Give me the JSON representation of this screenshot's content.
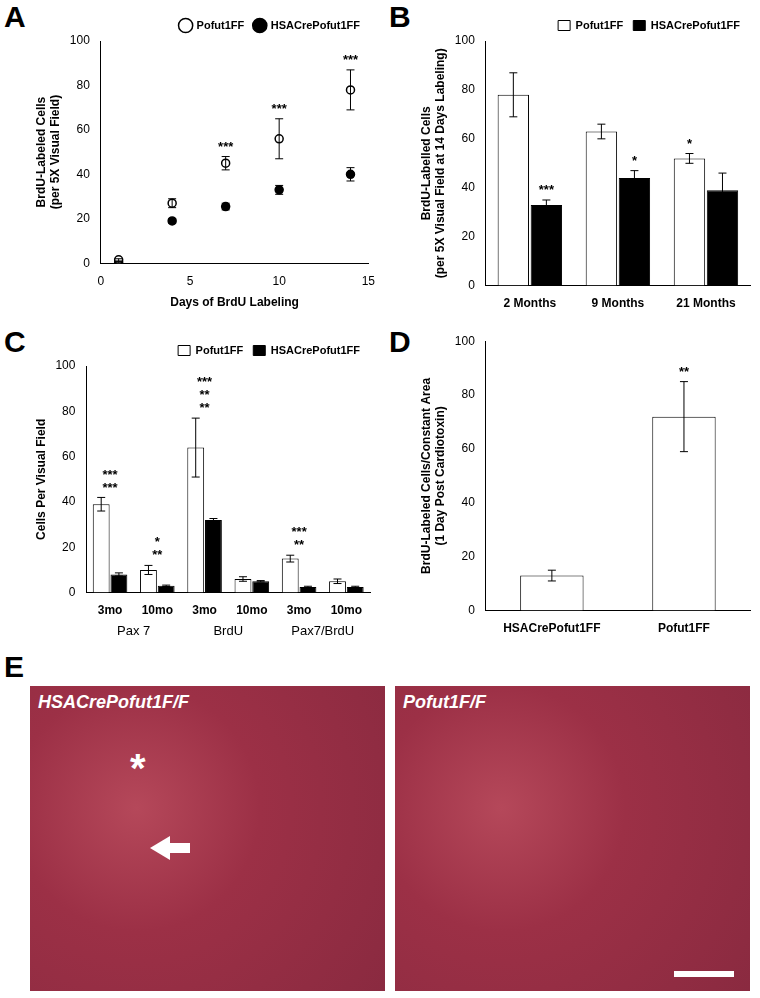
{
  "chart_data": [
    {
      "type": "scatter",
      "title": "A",
      "x_label": "Days of BrdU Labeling",
      "y_label": "BrdU-Labeled Cells\n(per 5X Visual Field)",
      "x": [
        1,
        4,
        7,
        10,
        14
      ],
      "series": [
        {
          "name": "Pofut1FF",
          "color": "#000000",
          "marker": "open_circle",
          "values": [
            1.5,
            27,
            45,
            56,
            78
          ],
          "errors": [
            0.5,
            2,
            3,
            9,
            9
          ]
        },
        {
          "name": "HSACrePofut1FF",
          "color": "#000000",
          "marker": "filled_circle",
          "values": [
            0.5,
            19,
            25.5,
            33,
            40
          ],
          "errors": [
            0.3,
            1,
            1.5,
            2,
            3
          ]
        }
      ],
      "xlim": [
        0,
        15
      ],
      "xticks": [
        0,
        5,
        10,
        15
      ],
      "ylim": [
        0,
        100
      ],
      "yticks": [
        0,
        20,
        40,
        60,
        80,
        100
      ],
      "grid": false,
      "legend": "top-right",
      "annotations": [
        {
          "x": 7,
          "text": "***"
        },
        {
          "x": 10,
          "text": "***"
        },
        {
          "x": 14,
          "text": "***"
        }
      ]
    },
    {
      "type": "bar",
      "title": "B",
      "y_label": "BrdU-Labelled Cells\n(per 5X Visual Field at 14 Days Labeling)",
      "categories": [
        "2 Months",
        "9 Months",
        "21 Months"
      ],
      "series": [
        {
          "name": "Pofut1FF",
          "color": "#ffffff",
          "values": [
            78,
            63,
            52
          ],
          "errors": [
            9,
            3,
            2
          ]
        },
        {
          "name": "HSACrePofut1FF",
          "color": "#000000",
          "values": [
            33,
            44,
            39
          ],
          "errors": [
            2,
            3,
            7
          ]
        }
      ],
      "ylim": [
        0,
        100
      ],
      "yticks": [
        0,
        20,
        40,
        60,
        80,
        100
      ],
      "grid": false,
      "legend": "top-right",
      "annotations": [
        {
          "category": 0,
          "series": 1,
          "text": "***"
        },
        {
          "category": 1,
          "series": 1,
          "text": "*"
        },
        {
          "category": 2,
          "series": 0,
          "text": "*"
        }
      ]
    },
    {
      "type": "bar",
      "title": "C",
      "y_label": "Cells Per Visual Field",
      "categories": [
        "3mo",
        "10mo",
        "3mo",
        "10mo",
        "3mo",
        "10mo"
      ],
      "groups": [
        "Pax 7",
        "BrdU",
        "Pax7/BrdU"
      ],
      "series": [
        {
          "name": "Pofut1FF",
          "color": "#ffffff",
          "values": [
            39,
            10,
            64,
            6,
            15,
            5
          ],
          "errors": [
            3,
            2,
            13,
            1,
            1.5,
            1
          ]
        },
        {
          "name": "HSACrePofut1FF",
          "color": "#000000",
          "values": [
            8,
            3,
            32,
            5,
            2.5,
            2.5
          ],
          "errors": [
            0.7,
            0.3,
            0.7,
            0.3,
            0.3,
            0.3
          ]
        }
      ],
      "ylim": [
        0,
        100
      ],
      "yticks": [
        0,
        20,
        40,
        60,
        80,
        100
      ],
      "grid": false,
      "legend": "top-right",
      "annotations": [
        {
          "category": 0,
          "text": "***"
        },
        {
          "category": 0,
          "text": "***"
        },
        {
          "category": 1,
          "text": "**"
        },
        {
          "category": 1,
          "text": "*"
        },
        {
          "category": 2,
          "text": "**"
        },
        {
          "category": 2,
          "text": "**"
        },
        {
          "category": 2,
          "text": "***"
        },
        {
          "category": 4,
          "text": "**"
        },
        {
          "category": 4,
          "text": "***"
        }
      ]
    },
    {
      "type": "bar",
      "title": "D",
      "y_label": "BrdU-Labeled Cells/Constant Area\n(1 Day Post Cardiotoxin)",
      "categories": [
        "HSACrePofut1FF",
        "Pofut1FF"
      ],
      "values": [
        13,
        72
      ],
      "errors": [
        2,
        13
      ],
      "color": "#ffffff",
      "ylim": [
        0,
        100
      ],
      "yticks": [
        0,
        20,
        40,
        60,
        80,
        100
      ],
      "grid": false,
      "annotations": [
        {
          "category": 1,
          "text": "**"
        }
      ]
    }
  ],
  "panel_e": {
    "title": "E",
    "images": [
      {
        "label": "HSACrePofut1F/F",
        "annotations": [
          "*"
        ]
      },
      {
        "label": "Pofut1F/F"
      }
    ]
  }
}
